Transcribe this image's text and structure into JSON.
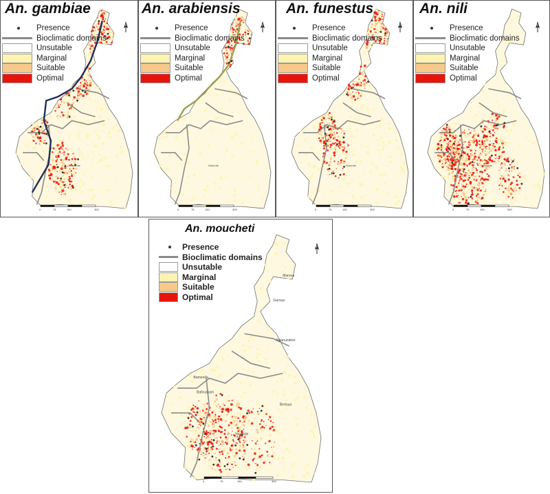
{
  "colors": {
    "unsuitable": "#ffffff",
    "marginal": "#fdf4b4",
    "suitable": "#f7c98a",
    "optimal": "#e8140c",
    "bioclim": "#8a8a8a",
    "presence": "#333333",
    "cameroon_fill": "#fff8e0",
    "outline": "#6e6e6e"
  },
  "panels": [
    {
      "id": "gambiae",
      "title": "An. gambiae",
      "legend": {
        "presence": "Presence",
        "bioclim": "Bioclimatic domains",
        "unsuitable": "Unsutable",
        "marginal": "Marginal",
        "suitable": "Suitable",
        "optimal": "Optimal"
      },
      "labels": [
        "Yaounde"
      ]
    },
    {
      "id": "arabiensis",
      "title": "An. arabiensis",
      "legend": {
        "presence": "Presence",
        "bioclim": "Bioclimatic domains",
        "unsuitable": "Unsutable",
        "marginal": "Marginal",
        "suitable": "Suitable",
        "optimal": "Optimal"
      },
      "labels": [
        "Yaounde"
      ]
    },
    {
      "id": "funestus",
      "title": "An. funestus",
      "legend": {
        "presence": "Presence",
        "bioclim": "Bioclimatic domains",
        "unsuitable": "Unsutable",
        "marginal": "Marginal",
        "suitable": "Suitable",
        "optimal": "Optimal"
      },
      "labels": [
        "Yaounde"
      ]
    },
    {
      "id": "nili",
      "title": "An. nili",
      "legend": {
        "presence": "Presence",
        "bioclim": "Bioclimatic domains",
        "unsuitable": "Unsutable",
        "marginal": "Marginal",
        "suitable": "Suitable",
        "optimal": "Optimal"
      },
      "labels": [
        "Yaounde"
      ]
    },
    {
      "id": "moucheti",
      "title": "An. moucheti",
      "legend": {
        "presence": "Presence",
        "bioclim": "Bioclimatic domains",
        "unsuitable": "Unsutable",
        "marginal": "Marginal",
        "suitable": "Suitable",
        "optimal": "Optimal"
      },
      "labels": [
        "Maroua",
        "Garoua",
        "Ngaoundéré",
        "Bamenda",
        "Bafoussam",
        "Bertoua",
        "Yaounde"
      ]
    }
  ],
  "north_arrow": "N",
  "scale_labels": [
    "0",
    "75",
    "150",
    "300"
  ]
}
